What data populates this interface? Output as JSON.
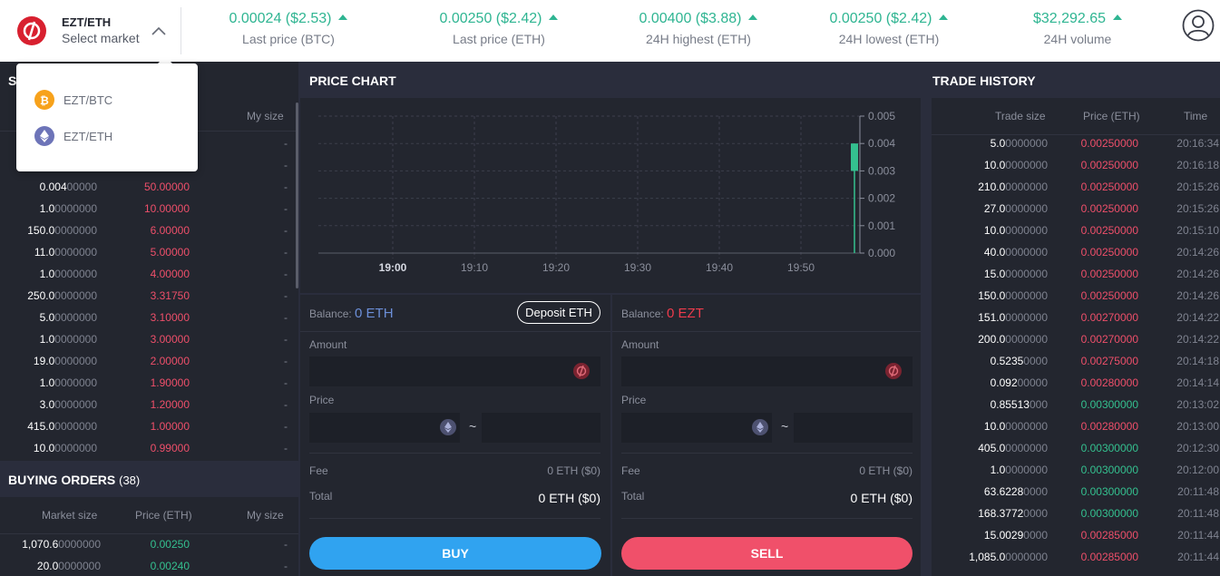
{
  "market": {
    "title": "EZT/ETH",
    "subtitle": "Select market"
  },
  "stats": [
    {
      "value": "0.00024 ($2.53)",
      "label": "Last price (BTC)"
    },
    {
      "value": "0.00250 ($2.42)",
      "label": "Last price (ETH)"
    },
    {
      "value": "0.00400 ($3.88)",
      "label": "24H highest (ETH)"
    },
    {
      "value": "0.00250 ($2.42)",
      "label": "24H lowest (ETH)"
    },
    {
      "value": "$32,292.65",
      "label": "24H volume"
    }
  ],
  "dropdown": {
    "items": [
      {
        "label": "EZT/BTC",
        "icon": "bitcoin-icon"
      },
      {
        "label": "EZT/ETH",
        "icon": "ethereum-icon"
      }
    ]
  },
  "selling": {
    "title_initial": "S",
    "my_size_label": "My size",
    "rows": [
      {
        "size_b": "",
        "size_d": "",
        "price": "",
        "mine": "-"
      },
      {
        "size_b": "",
        "size_d": "",
        "price": "",
        "mine": "-"
      },
      {
        "size_b": "0.004",
        "size_d": "00000",
        "price": "50.00000",
        "mine": "-"
      },
      {
        "size_b": "1.0",
        "size_d": "0000000",
        "price": "10.00000",
        "mine": "-"
      },
      {
        "size_b": "150.0",
        "size_d": "0000000",
        "price": "6.00000",
        "mine": "-"
      },
      {
        "size_b": "11.0",
        "size_d": "0000000",
        "price": "5.00000",
        "mine": "-"
      },
      {
        "size_b": "1.0",
        "size_d": "0000000",
        "price": "4.00000",
        "mine": "-"
      },
      {
        "size_b": "250.0",
        "size_d": "0000000",
        "price": "3.31750",
        "mine": "-"
      },
      {
        "size_b": "5.0",
        "size_d": "0000000",
        "price": "3.10000",
        "mine": "-"
      },
      {
        "size_b": "1.0",
        "size_d": "0000000",
        "price": "3.00000",
        "mine": "-"
      },
      {
        "size_b": "19.0",
        "size_d": "0000000",
        "price": "2.00000",
        "mine": "-"
      },
      {
        "size_b": "1.0",
        "size_d": "0000000",
        "price": "1.90000",
        "mine": "-"
      },
      {
        "size_b": "3.0",
        "size_d": "0000000",
        "price": "1.20000",
        "mine": "-"
      },
      {
        "size_b": "415.0",
        "size_d": "0000000",
        "price": "1.00000",
        "mine": "-"
      },
      {
        "size_b": "10.0",
        "size_d": "0000000",
        "price": "0.99000",
        "mine": "-"
      }
    ]
  },
  "buying": {
    "title": "BUYING ORDERS",
    "count": "(38)",
    "col_market": "Market size",
    "col_price": "Price (ETH)",
    "col_mine": "My size",
    "rows": [
      {
        "size_b": "1,070.6",
        "size_d": "0000000",
        "price": "0.00250",
        "mine": "-"
      },
      {
        "size_b": "20.0",
        "size_d": "0000000",
        "price": "0.00240",
        "mine": "-"
      }
    ]
  },
  "chart": {
    "title": "PRICE CHART",
    "y_ticks": [
      "0.005",
      "0.004",
      "0.003",
      "0.002",
      "0.001",
      "0.000"
    ],
    "x_ticks": [
      "19:00",
      "19:10",
      "19:20",
      "19:30",
      "19:40",
      "19:50"
    ]
  },
  "chart_data": {
    "type": "candlestick",
    "x": [
      "19:57"
    ],
    "series": [
      {
        "open": 0.003,
        "high": 0.004,
        "low": 0.0,
        "close": 0.004
      }
    ],
    "ylim": [
      0,
      0.005
    ],
    "x_ticks": [
      "19:00",
      "19:10",
      "19:20",
      "19:30",
      "19:40",
      "19:50"
    ],
    "grid": true
  },
  "buy": {
    "balance_label": "Balance:",
    "balance_value": "0 ETH",
    "deposit": "Deposit ETH",
    "amount_label": "Amount",
    "price_label": "Price",
    "tilde": "~",
    "fee_label": "Fee",
    "fee_value": "0 ETH ($0)",
    "total_label": "Total",
    "total_value": "0 ETH ($0)",
    "button": "BUY"
  },
  "sell": {
    "balance_label": "Balance:",
    "balance_value": "0 EZT",
    "amount_label": "Amount",
    "price_label": "Price",
    "tilde": "~",
    "fee_label": "Fee",
    "fee_value": "0 ETH ($0)",
    "total_label": "Total",
    "total_value": "0 ETH ($0)",
    "button": "SELL"
  },
  "history": {
    "title": "TRADE HISTORY",
    "col_size": "Trade size",
    "col_price": "Price (ETH)",
    "col_time": "Time",
    "rows": [
      {
        "size_b": "5.0",
        "size_d": "0000000",
        "price": "0.00250000",
        "color": "red",
        "time": "20:16:34"
      },
      {
        "size_b": "10.0",
        "size_d": "0000000",
        "price": "0.00250000",
        "color": "red",
        "time": "20:16:18"
      },
      {
        "size_b": "210.0",
        "size_d": "0000000",
        "price": "0.00250000",
        "color": "red",
        "time": "20:15:26"
      },
      {
        "size_b": "27.0",
        "size_d": "0000000",
        "price": "0.00250000",
        "color": "red",
        "time": "20:15:26"
      },
      {
        "size_b": "10.0",
        "size_d": "0000000",
        "price": "0.00250000",
        "color": "red",
        "time": "20:15:10"
      },
      {
        "size_b": "40.0",
        "size_d": "0000000",
        "price": "0.00250000",
        "color": "red",
        "time": "20:14:26"
      },
      {
        "size_b": "15.0",
        "size_d": "0000000",
        "price": "0.00250000",
        "color": "red",
        "time": "20:14:26"
      },
      {
        "size_b": "150.0",
        "size_d": "0000000",
        "price": "0.00250000",
        "color": "red",
        "time": "20:14:26"
      },
      {
        "size_b": "151.0",
        "size_d": "0000000",
        "price": "0.00270000",
        "color": "red",
        "time": "20:14:22"
      },
      {
        "size_b": "200.0",
        "size_d": "0000000",
        "price": "0.00270000",
        "color": "red",
        "time": "20:14:22"
      },
      {
        "size_b": "0.5235",
        "size_d": "0000",
        "price": "0.00275000",
        "color": "red",
        "time": "20:14:18"
      },
      {
        "size_b": "0.092",
        "size_d": "00000",
        "price": "0.00280000",
        "color": "red",
        "time": "20:14:14"
      },
      {
        "size_b": "0.85513",
        "size_d": "000",
        "price": "0.00300000",
        "color": "grn",
        "time": "20:13:02"
      },
      {
        "size_b": "10.0",
        "size_d": "0000000",
        "price": "0.00280000",
        "color": "red",
        "time": "20:13:00"
      },
      {
        "size_b": "405.0",
        "size_d": "0000000",
        "price": "0.00300000",
        "color": "grn",
        "time": "20:12:30"
      },
      {
        "size_b": "1.0",
        "size_d": "0000000",
        "price": "0.00300000",
        "color": "grn",
        "time": "20:12:00"
      },
      {
        "size_b": "63.6228",
        "size_d": "0000",
        "price": "0.00300000",
        "color": "grn",
        "time": "20:11:48"
      },
      {
        "size_b": "168.3772",
        "size_d": "0000",
        "price": "0.00300000",
        "color": "grn",
        "time": "20:11:48"
      },
      {
        "size_b": "15.0029",
        "size_d": "0000",
        "price": "0.00285000",
        "color": "red",
        "time": "20:11:44"
      },
      {
        "size_b": "1,085.0",
        "size_d": "0000000",
        "price": "0.00285000",
        "color": "red",
        "time": "20:11:44"
      }
    ]
  }
}
